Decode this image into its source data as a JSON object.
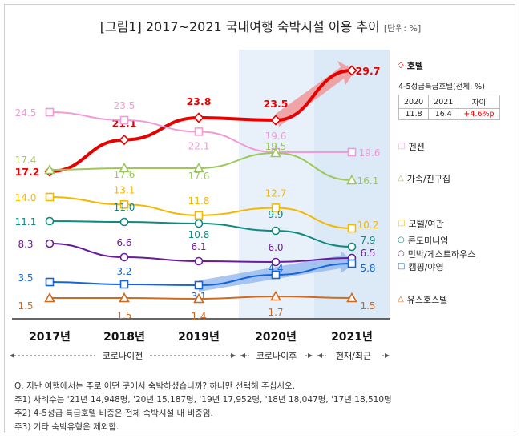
{
  "title": "[그림1] 2017~2021 국내여행 숙박시설 이용 추이",
  "unit": "[단위: %]",
  "period_labels": [
    "코로나이전",
    "코로나이후",
    "현재/최근"
  ],
  "inset": {
    "caption": "4-5성급특급호텔(전체, %)",
    "headers": [
      "2020",
      "2021",
      "차이"
    ],
    "values": [
      "11.8",
      "16.4",
      "+4.6%p"
    ]
  },
  "notes": [
    "Q. 지난 여행에서는 주로 어떤 곳에서 숙박하셨습니까? 하나만 선택해 주십시오.",
    "주1) 사례수는 '21년 14,948명, '20년 15,187명, '19년 17,952명, '18년 18,047명, '17년 18,510명",
    "주2) 4-5성급 특급호텔 비중은 전체 숙박시설 내 비중임.",
    "주3) 기타 숙박유형은 제외함."
  ],
  "chart_data": {
    "type": "line",
    "categories": [
      "2017년",
      "2018년",
      "2019년",
      "2020년",
      "2021년"
    ],
    "series": [
      {
        "name": "호텔",
        "values": [
          17.2,
          21.1,
          23.8,
          23.5,
          29.7
        ],
        "color": "#e60000",
        "marker": "diamond"
      },
      {
        "name": "펜션",
        "values": [
          24.5,
          23.5,
          22.1,
          19.6,
          19.6
        ],
        "color": "#f29ad8",
        "marker": "square"
      },
      {
        "name": "가족/친구집",
        "values": [
          17.4,
          17.6,
          17.6,
          19.5,
          16.1
        ],
        "color": "#9dc75a",
        "marker": "triangle"
      },
      {
        "name": "모텔/여관",
        "values": [
          14.0,
          13.1,
          11.8,
          12.7,
          10.2
        ],
        "color": "#f5b800",
        "marker": "square"
      },
      {
        "name": "콘도미니엄",
        "values": [
          11.1,
          11.0,
          10.8,
          9.9,
          7.9
        ],
        "color": "#0e8a80",
        "marker": "circle"
      },
      {
        "name": "민박/게스트하우스",
        "values": [
          8.3,
          6.6,
          6.1,
          6.0,
          6.5
        ],
        "color": "#6a1b9a",
        "marker": "circle"
      },
      {
        "name": "캠핑/야영",
        "values": [
          3.5,
          3.2,
          3.1,
          4.4,
          5.8
        ],
        "color": "#1565d8",
        "marker": "square"
      },
      {
        "name": "유스호스텔",
        "values": [
          1.5,
          1.5,
          1.4,
          1.7,
          1.5
        ],
        "color": "#d2691e",
        "marker": "triangle"
      }
    ]
  }
}
